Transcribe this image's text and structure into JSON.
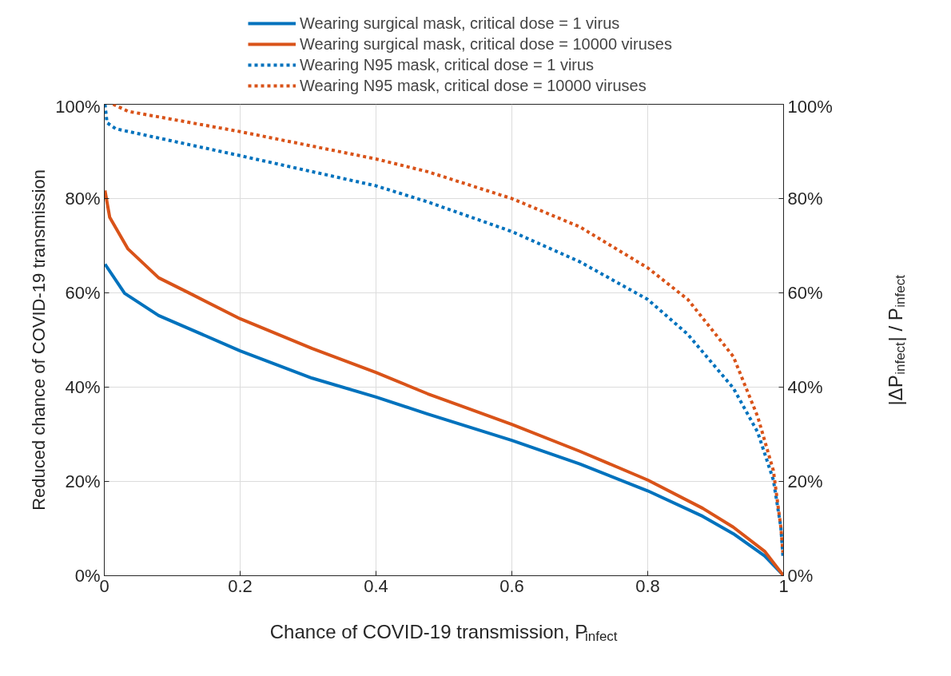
{
  "chart_data": {
    "type": "line",
    "xlabel": "Chance of COVID-19 transmission, P$_{infect}$",
    "ylabel": "Reduced chance of COVID-19 transmission",
    "y2label": "|ΔP$_{infect}$| / P$_{infect}$",
    "xlim": [
      0,
      1
    ],
    "xticks": [
      0,
      0.2,
      0.4,
      0.6,
      0.8,
      1
    ],
    "ylim": [
      0,
      100
    ],
    "yticks": [
      {
        "value": 0,
        "label": "0%"
      },
      {
        "value": 20,
        "label": "20%"
      },
      {
        "value": 40,
        "label": "40%"
      },
      {
        "value": 60,
        "label": "60%"
      },
      {
        "value": 80,
        "label": "80%"
      },
      {
        "value": 100,
        "label": "100%"
      }
    ],
    "y2lim": [
      0,
      100
    ],
    "y2ticks": [
      {
        "value": 0,
        "label": "0%"
      },
      {
        "value": 20,
        "label": "20%"
      },
      {
        "value": 40,
        "label": "40%"
      },
      {
        "value": 60,
        "label": "60%"
      },
      {
        "value": 80,
        "label": "80%"
      },
      {
        "value": 100,
        "label": "100%"
      }
    ],
    "grid": true,
    "legend": "top",
    "series": [
      {
        "name": "Wearing surgical mask, critical dose = 1 virus",
        "color": "#0072bd",
        "line_style": "solid",
        "x": [
          0.001,
          0.03,
          0.08,
          0.2,
          0.306,
          0.4,
          0.476,
          0.6,
          0.7,
          0.8,
          0.881,
          0.926,
          0.972,
          0.999,
          1
        ],
        "values": [
          66.1,
          59.9,
          55.2,
          47.7,
          41.9,
          37.9,
          34.3,
          28.7,
          23.7,
          18.0,
          12.6,
          8.9,
          4.2,
          0.2,
          0
        ]
      },
      {
        "name": "Wearing surgical mask, critical dose = 10000 viruses",
        "color": "#d95319",
        "line_style": "solid",
        "x": [
          0.001,
          0.008,
          0.035,
          0.08,
          0.126,
          0.2,
          0.306,
          0.4,
          0.476,
          0.6,
          0.7,
          0.8,
          0.881,
          0.926,
          0.972,
          1
        ],
        "values": [
          81.7,
          76.0,
          69.3,
          63.2,
          59.9,
          54.5,
          48.2,
          43.1,
          38.6,
          32.1,
          26.4,
          20.3,
          14.3,
          10.3,
          5.2,
          0
        ]
      },
      {
        "name": "Wearing N95 mask, critical dose = 1 virus",
        "color": "#0072bd",
        "line_style": "dotted",
        "x": [
          0.001,
          0.004,
          0.017,
          0.2,
          0.4,
          0.476,
          0.6,
          0.7,
          0.8,
          0.859,
          0.926,
          0.962,
          0.985,
          0.996,
          0.999
        ],
        "values": [
          100,
          96.1,
          94.8,
          89.1,
          82.7,
          79.3,
          73.0,
          66.6,
          58.6,
          51.2,
          39.8,
          30.4,
          20.3,
          10.3,
          4.2
        ]
      },
      {
        "name": "Wearing N95 mask, critical dose = 10000 viruses",
        "color": "#d95319",
        "line_style": "dotted",
        "x": [
          0.013,
          0.035,
          0.2,
          0.4,
          0.476,
          0.6,
          0.7,
          0.8,
          0.859,
          0.926,
          0.962,
          0.985,
          0.996,
          0.999
        ],
        "values": [
          100,
          98.5,
          94.2,
          88.4,
          85.7,
          80.0,
          74.0,
          65.3,
          58.6,
          46.5,
          33.7,
          22.3,
          10.3,
          4.9
        ]
      }
    ]
  }
}
